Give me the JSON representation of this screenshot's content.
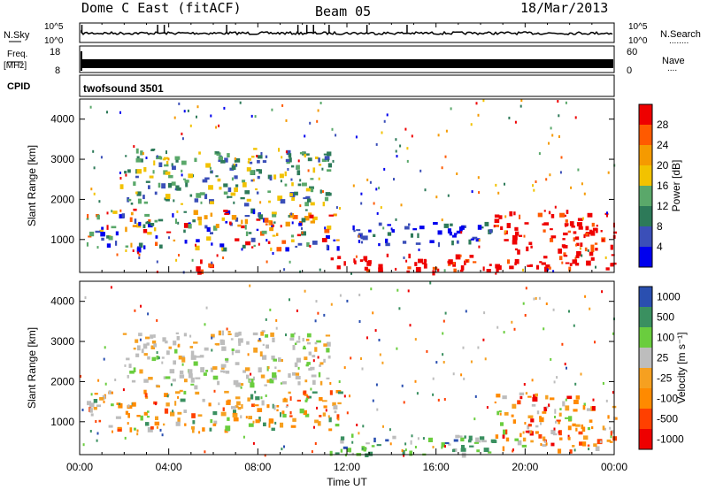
{
  "header": {
    "radar": "Dome C East (fitACF)",
    "beam": "Beam 05",
    "date": "18/Mar/2013"
  },
  "strips": {
    "nsky": {
      "label": "N.Sky",
      "ticks": [
        "10^5",
        "10^0"
      ],
      "right_label": "N.Search",
      "right_ticks": [
        "10^5",
        "10^0"
      ]
    },
    "freq": {
      "label": "Freq.",
      "unit": "[MHz]",
      "ticks": [
        "18",
        "8"
      ],
      "right_label": "Nave",
      "right_ticks": [
        "60",
        "0"
      ]
    },
    "cpid": {
      "label": "CPID",
      "program": "twofsound 3501"
    }
  },
  "chart_data": [
    {
      "type": "heatmap",
      "panel": "power",
      "ylabel": "Slant Range [km]",
      "ylim": [
        180,
        4500
      ],
      "yticks": [
        1000,
        2000,
        3000,
        4000
      ],
      "xlim": [
        "00:00",
        "24:00"
      ],
      "colorbar": {
        "label": "Power [dB]",
        "range": [
          0,
          32
        ],
        "ticks": [
          4,
          8,
          12,
          16,
          20,
          24,
          28
        ],
        "colors": [
          "#0000ee",
          "#3b4fb8",
          "#2d7a59",
          "#5aa86a",
          "#f2c200",
          "#f59a00",
          "#ff5a00",
          "#ee0000"
        ]
      },
      "features": [
        {
          "t0": 0.3,
          "t1": 11.6,
          "r0": 800,
          "r1": 1800,
          "level": "mixed 4-28 dB"
        },
        {
          "t0": 1.8,
          "t1": 11.2,
          "r0": 1900,
          "r1": 3300,
          "level": "mostly 4-16 dB"
        },
        {
          "t0": 5.2,
          "t1": 6.2,
          "r0": 200,
          "r1": 600,
          "level": "near 28 dB"
        },
        {
          "t0": 11.2,
          "t1": 18.8,
          "r0": 200,
          "r1": 650,
          "level": "near 28 dB"
        },
        {
          "t0": 18.6,
          "t1": 24.0,
          "r0": 300,
          "r1": 1750,
          "level": "near 28 dB"
        },
        {
          "t0": 12.0,
          "t1": 18.6,
          "r0": 900,
          "r1": 1450,
          "level": "4-12 dB bands"
        }
      ]
    },
    {
      "type": "heatmap",
      "panel": "velocity",
      "ylabel": "Slant Range [km]",
      "ylim": [
        180,
        4500
      ],
      "yticks": [
        1000,
        2000,
        3000,
        4000
      ],
      "xlim": [
        "00:00",
        "24:00"
      ],
      "xticks": [
        "00:00",
        "04:00",
        "08:00",
        "12:00",
        "16:00",
        "20:00",
        "00:00"
      ],
      "xlabel": "Time UT",
      "colorbar": {
        "label": "Velocity [m s⁻¹]",
        "ticks": [
          1000,
          500,
          100,
          25,
          -25,
          -100,
          -500,
          -1000
        ],
        "colors": [
          "#2a4fb0",
          "#3a9060",
          "#6acd3e",
          "#bdbdbd",
          "#f6a020",
          "#ff8a00",
          "#ff4000",
          "#ee0000"
        ]
      },
      "features": [
        {
          "t0": 0.3,
          "t1": 11.6,
          "r0": 800,
          "r1": 1800,
          "level": "-25 to -500 m/s"
        },
        {
          "t0": 1.8,
          "t1": 11.2,
          "r0": 1900,
          "r1": 3300,
          "level": "-25 to 25 m/s"
        },
        {
          "t0": 11.2,
          "t1": 18.8,
          "r0": 200,
          "r1": 700,
          "level": "25 to 500 m/s"
        },
        {
          "t0": 18.6,
          "t1": 24.0,
          "r0": 300,
          "r1": 1750,
          "level": "-100 to -500 m/s"
        }
      ]
    }
  ]
}
